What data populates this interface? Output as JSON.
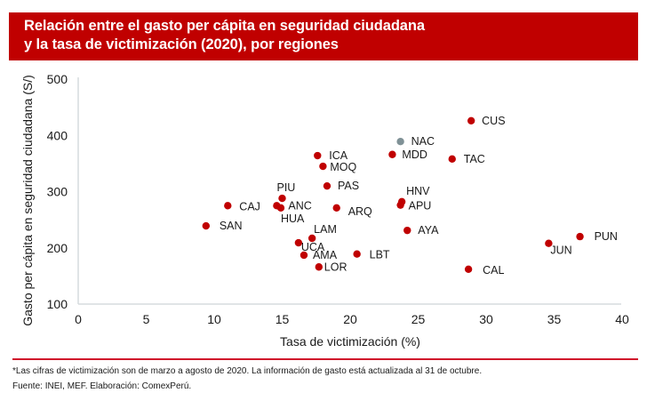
{
  "title": {
    "line1": "Relación entre el gasto per cápita en seguridad ciudadana",
    "line2": "y la tasa de victimización (2020), por regiones"
  },
  "colors": {
    "banner": "#c00000",
    "point": "#c00000",
    "highlight": "#7f9196",
    "axis": "#d5dcdd",
    "rule": "#d0122b"
  },
  "chart_data": {
    "type": "scatter",
    "title": "Relación entre el gasto per cápita en seguridad ciudadana y la tasa de victimización (2020), por regiones",
    "xlabel": "Tasa de victimización (%)",
    "ylabel": "Gasto per cápita en seguridad ciudadana (S/)",
    "xlim": [
      0,
      40
    ],
    "ylim": [
      100,
      500
    ],
    "xticks": [
      "0",
      "5",
      "10",
      "15",
      "20",
      "25",
      "30",
      "35",
      "40"
    ],
    "yticks": [
      "100",
      "200",
      "300",
      "400",
      "500"
    ],
    "grid": false,
    "points": [
      {
        "label": "CUS",
        "x": 28.9,
        "y": 426,
        "highlight": false
      },
      {
        "label": "NAC",
        "x": 23.7,
        "y": 389,
        "highlight": true
      },
      {
        "label": "MDD",
        "x": 23.1,
        "y": 366,
        "highlight": false
      },
      {
        "label": "TAC",
        "x": 27.5,
        "y": 358,
        "highlight": false
      },
      {
        "label": "ICA",
        "x": 17.6,
        "y": 364,
        "highlight": false
      },
      {
        "label": "MOQ",
        "x": 18.0,
        "y": 345,
        "highlight": false
      },
      {
        "label": "PAS",
        "x": 18.3,
        "y": 310,
        "highlight": false
      },
      {
        "label": "PIU",
        "x": 15.0,
        "y": 288,
        "highlight": false
      },
      {
        "label": "CAJ",
        "x": 11.0,
        "y": 275,
        "highlight": false
      },
      {
        "label": "ANC",
        "x": 14.6,
        "y": 275,
        "highlight": false
      },
      {
        "label": "HUA",
        "x": 14.9,
        "y": 271,
        "highlight": false
      },
      {
        "label": "ARQ",
        "x": 19.0,
        "y": 271,
        "highlight": false
      },
      {
        "label": "HNV",
        "x": 23.8,
        "y": 282,
        "highlight": false
      },
      {
        "label": "APU",
        "x": 23.7,
        "y": 276,
        "highlight": false
      },
      {
        "label": "AYA",
        "x": 24.2,
        "y": 231,
        "highlight": false
      },
      {
        "label": "SAN",
        "x": 9.4,
        "y": 239,
        "highlight": false
      },
      {
        "label": "LAM",
        "x": 17.2,
        "y": 217,
        "highlight": false
      },
      {
        "label": "UCA",
        "x": 16.2,
        "y": 209,
        "highlight": false
      },
      {
        "label": "AMA",
        "x": 16.6,
        "y": 187,
        "highlight": false
      },
      {
        "label": "LOR",
        "x": 17.7,
        "y": 166,
        "highlight": false
      },
      {
        "label": "LBT",
        "x": 20.5,
        "y": 189,
        "highlight": false
      },
      {
        "label": "CAL",
        "x": 28.7,
        "y": 162,
        "highlight": false
      },
      {
        "label": "JUN",
        "x": 34.6,
        "y": 208,
        "highlight": false
      },
      {
        "label": "PUN",
        "x": 36.9,
        "y": 220,
        "highlight": false
      }
    ]
  },
  "footer": {
    "note": "*Las cifras de victimización son de marzo a agosto de 2020. La información de gasto está actualizada al 31 de octubre.",
    "source": "Fuente: INEI, MEF. Elaboración: ComexPerú."
  }
}
